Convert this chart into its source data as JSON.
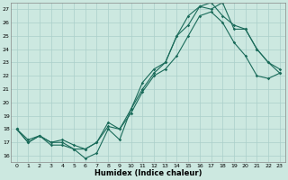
{
  "xlabel": "Humidex (Indice chaleur)",
  "bg_color": "#cce8e0",
  "grid_color": "#aacfca",
  "line_color": "#1a6b5a",
  "xlim": [
    -0.5,
    23.5
  ],
  "ylim": [
    15.5,
    27.5
  ],
  "xticks": [
    0,
    1,
    2,
    3,
    4,
    5,
    6,
    7,
    8,
    9,
    10,
    11,
    12,
    13,
    14,
    15,
    16,
    17,
    18,
    19,
    20,
    21,
    22,
    23
  ],
  "yticks": [
    16,
    17,
    18,
    19,
    20,
    21,
    22,
    23,
    24,
    25,
    26,
    27
  ],
  "line_jagged_x": [
    0,
    1,
    2,
    3,
    4,
    5,
    6,
    7,
    8,
    9,
    10,
    11,
    12,
    13,
    14,
    15,
    16,
    17,
    18,
    19,
    20,
    21,
    22,
    23
  ],
  "line_jagged_y": [
    18.0,
    17.0,
    17.5,
    16.8,
    16.8,
    16.5,
    15.8,
    16.2,
    18.0,
    17.2,
    19.5,
    21.0,
    22.2,
    23.0,
    25.0,
    25.8,
    27.2,
    27.0,
    27.5,
    25.5,
    25.5,
    24.0,
    23.0,
    22.5
  ],
  "line_upper_x": [
    0,
    1,
    2,
    3,
    4,
    5,
    6,
    7,
    8,
    9,
    10,
    11,
    12,
    13,
    14,
    15,
    16,
    17,
    18,
    19,
    20,
    21,
    22,
    23
  ],
  "line_upper_y": [
    18.0,
    17.0,
    17.5,
    17.0,
    17.0,
    16.5,
    16.5,
    17.0,
    18.5,
    18.0,
    19.5,
    21.5,
    22.5,
    23.0,
    25.0,
    26.5,
    27.2,
    27.5,
    26.5,
    25.8,
    25.5,
    24.0,
    23.0,
    22.2
  ],
  "line_lower_x": [
    0,
    1,
    2,
    3,
    4,
    5,
    6,
    7,
    8,
    9,
    10,
    11,
    12,
    13,
    14,
    15,
    16,
    17,
    18,
    19,
    20,
    21,
    22,
    23
  ],
  "line_lower_y": [
    18.0,
    17.2,
    17.5,
    17.0,
    17.2,
    16.8,
    16.5,
    17.0,
    18.2,
    18.0,
    19.2,
    20.8,
    22.0,
    22.5,
    23.5,
    25.0,
    26.5,
    26.8,
    26.0,
    24.5,
    23.5,
    22.0,
    21.8,
    22.2
  ]
}
